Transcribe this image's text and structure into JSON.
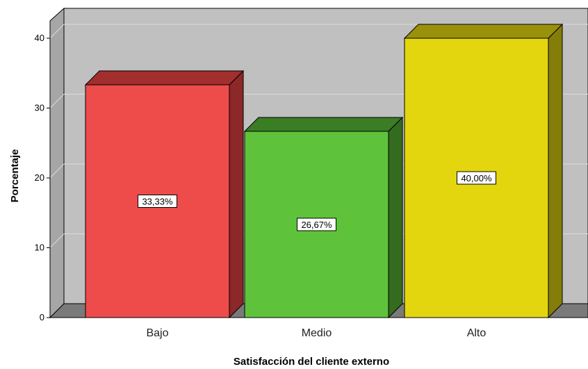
{
  "chart_data": {
    "type": "bar",
    "categories": [
      "Bajo",
      "Medio",
      "Alto"
    ],
    "values": [
      33.33,
      26.67,
      40.0
    ],
    "data_labels": [
      "33,33%",
      "26,67%",
      "40,00%"
    ],
    "xlabel": "Satisfacción del cliente externo",
    "ylabel": "Porcentaje",
    "ylim": [
      0,
      40
    ],
    "yticks": [
      0,
      10,
      20,
      30,
      40
    ],
    "grid": true,
    "legend": "none",
    "style": "3d",
    "colors": {
      "bars": [
        "#ee4b4b",
        "#5fc23b",
        "#e3d60e"
      ],
      "bar_tops": [
        "#a22e2e",
        "#3b7d25",
        "#9a910a"
      ],
      "bar_sides": [
        "#8c2828",
        "#336b1f",
        "#857d09"
      ],
      "plot_back": "#c0c0c0",
      "plot_side": "#a6a6a6",
      "floor": "#7a7a7a",
      "grid": "#dcdcdc"
    }
  }
}
